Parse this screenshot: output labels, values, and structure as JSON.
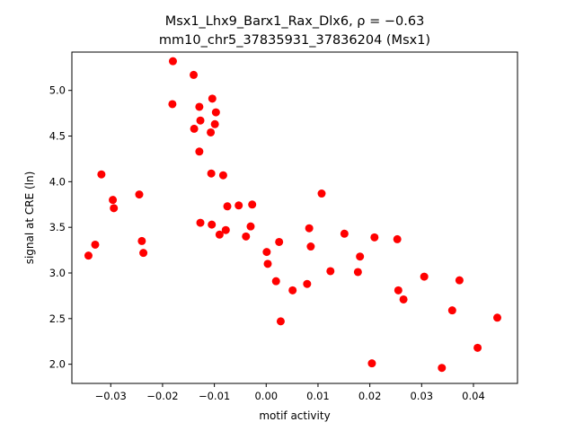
{
  "chart_data": {
    "type": "scatter",
    "title_line1": "Msx1_Lhx9_Barx1_Rax_Dlx6, ρ = −0.63",
    "title_line2": "mm10_chr5_37835931_37836204 (Msx1)",
    "xlabel": "motif activity",
    "ylabel": "signal at CRE (ln)",
    "xlim": [
      -0.0375,
      0.0485
    ],
    "ylim": [
      1.79,
      5.42
    ],
    "xticks": [
      -0.03,
      -0.02,
      -0.01,
      0.0,
      0.01,
      0.02,
      0.03,
      0.04
    ],
    "xtick_labels": [
      "−0.03",
      "−0.02",
      "−0.01",
      "0.00",
      "0.01",
      "0.02",
      "0.03",
      "0.04"
    ],
    "yticks": [
      2.0,
      2.5,
      3.0,
      3.5,
      4.0,
      4.5,
      5.0
    ],
    "ytick_labels": [
      "2.0",
      "2.5",
      "3.0",
      "3.5",
      "4.0",
      "4.5",
      "5.0"
    ],
    "grid": false,
    "marker_color": "#ff0000",
    "points": [
      [
        -0.0343,
        3.19
      ],
      [
        -0.033,
        3.31
      ],
      [
        -0.0318,
        4.08
      ],
      [
        -0.0296,
        3.8
      ],
      [
        -0.0294,
        3.71
      ],
      [
        -0.0245,
        3.86
      ],
      [
        -0.024,
        3.35
      ],
      [
        -0.0237,
        3.22
      ],
      [
        -0.018,
        5.32
      ],
      [
        -0.0181,
        4.85
      ],
      [
        -0.014,
        5.17
      ],
      [
        -0.0139,
        4.58
      ],
      [
        -0.0129,
        4.82
      ],
      [
        -0.0127,
        4.67
      ],
      [
        -0.0129,
        4.33
      ],
      [
        -0.0127,
        3.55
      ],
      [
        -0.0104,
        4.91
      ],
      [
        -0.0107,
        4.54
      ],
      [
        -0.0097,
        4.76
      ],
      [
        -0.0099,
        4.63
      ],
      [
        -0.0106,
        4.09
      ],
      [
        -0.0083,
        4.07
      ],
      [
        -0.0105,
        3.53
      ],
      [
        -0.0078,
        3.47
      ],
      [
        -0.009,
        3.42
      ],
      [
        -0.0075,
        3.73
      ],
      [
        -0.0053,
        3.74
      ],
      [
        -0.0027,
        3.75
      ],
      [
        -0.003,
        3.51
      ],
      [
        -0.0039,
        3.4
      ],
      [
        0.0001,
        3.23
      ],
      [
        0.0003,
        3.1
      ],
      [
        0.0025,
        3.34
      ],
      [
        0.0019,
        2.91
      ],
      [
        0.0028,
        2.47
      ],
      [
        0.0051,
        2.81
      ],
      [
        0.0083,
        3.49
      ],
      [
        0.0086,
        3.29
      ],
      [
        0.0079,
        2.88
      ],
      [
        0.0107,
        3.87
      ],
      [
        0.0124,
        3.02
      ],
      [
        0.0151,
        3.43
      ],
      [
        0.0177,
        3.01
      ],
      [
        0.0181,
        3.18
      ],
      [
        0.0209,
        3.39
      ],
      [
        0.0204,
        2.01
      ],
      [
        0.0253,
        3.37
      ],
      [
        0.0255,
        2.81
      ],
      [
        0.0265,
        2.71
      ],
      [
        0.0305,
        2.96
      ],
      [
        0.0339,
        1.96
      ],
      [
        0.0359,
        2.59
      ],
      [
        0.0373,
        2.92
      ],
      [
        0.0408,
        2.18
      ],
      [
        0.0446,
        2.51
      ]
    ]
  }
}
